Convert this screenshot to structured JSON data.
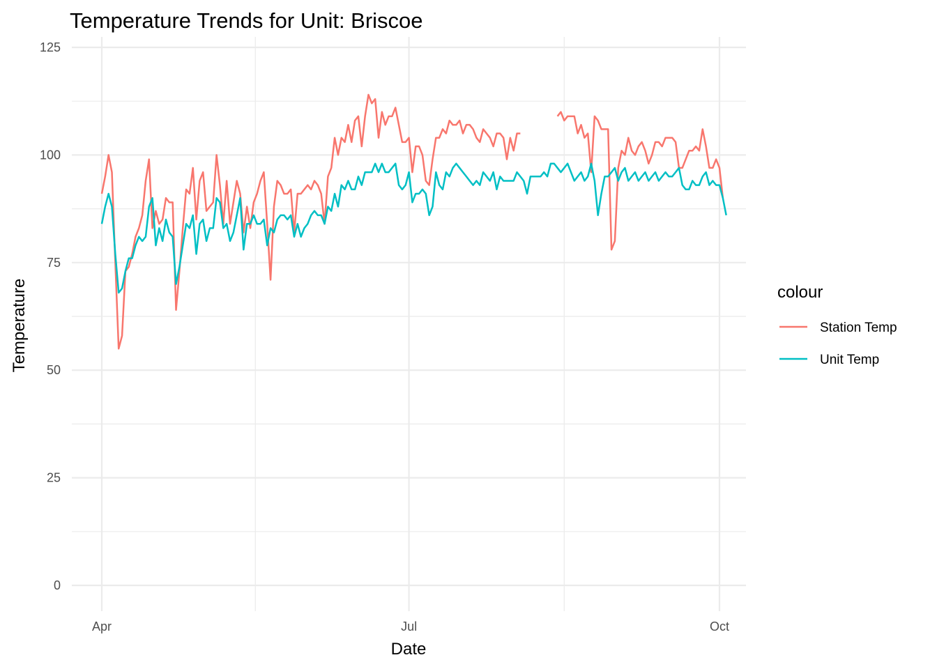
{
  "chart_data": {
    "type": "line",
    "title": "Temperature Trends for Unit: Briscoe",
    "xlabel": "Date",
    "ylabel": "Temperature",
    "ylim": [
      0,
      125
    ],
    "xlim": [
      "2024-04-01",
      "2024-10-01"
    ],
    "yticks": [
      0,
      25,
      50,
      75,
      100,
      125
    ],
    "xticks": [
      {
        "date": "2024-04-01",
        "label": "Apr"
      },
      {
        "date": "2024-07-01",
        "label": "Jul"
      },
      {
        "date": "2024-10-01",
        "label": "Oct"
      }
    ],
    "grid": true,
    "legend": {
      "title": "colour",
      "position": "right"
    },
    "series": [
      {
        "name": "Station Temp",
        "color": "#F8766D",
        "start_date": "2024-04-01",
        "values": [
          91,
          95,
          100,
          96,
          75,
          55,
          58,
          73,
          74,
          77,
          81,
          83,
          86,
          94,
          99,
          83,
          87,
          84,
          85,
          90,
          89,
          89,
          64,
          73,
          83,
          92,
          91,
          97,
          85,
          94,
          96,
          87,
          88,
          89,
          100,
          93,
          84,
          94,
          84,
          89,
          94,
          91,
          82,
          88,
          83,
          89,
          91,
          94,
          96,
          84,
          71,
          88,
          94,
          93,
          91,
          91,
          92,
          82,
          91,
          91,
          92,
          93,
          92,
          94,
          93,
          91,
          84,
          95,
          97,
          104,
          100,
          104,
          103,
          107,
          103,
          108,
          109,
          102,
          109,
          114,
          112,
          113,
          104,
          110,
          107,
          109,
          109,
          111,
          107,
          103,
          103,
          104,
          96,
          102,
          102,
          100,
          94,
          93,
          99,
          104,
          104,
          106,
          105,
          108,
          107,
          107,
          108,
          105,
          107,
          107,
          106,
          104,
          103,
          106,
          105,
          104,
          102,
          105,
          105,
          104,
          99,
          104,
          101,
          105,
          105,
          null,
          null,
          null,
          null,
          null,
          null,
          null,
          null,
          null,
          null,
          109,
          110,
          108,
          109,
          109,
          109,
          105,
          107,
          104,
          105,
          96,
          109,
          108,
          106,
          106,
          106,
          78,
          80,
          97,
          101,
          100,
          104,
          101,
          100,
          102,
          103,
          101,
          98,
          100,
          103,
          103,
          102,
          104,
          104,
          104,
          103,
          97,
          97,
          99,
          101,
          101,
          102,
          101,
          106,
          102,
          97,
          97,
          99,
          97,
          90
        ]
      },
      {
        "name": "Unit Temp",
        "color": "#00BFC4",
        "start_date": "2024-04-01",
        "values": [
          84,
          88,
          91,
          88,
          77,
          68,
          69,
          73,
          76,
          76,
          79,
          81,
          80,
          81,
          88,
          90,
          79,
          83,
          80,
          85,
          82,
          81,
          70,
          74,
          79,
          84,
          83,
          86,
          77,
          84,
          85,
          80,
          83,
          83,
          90,
          89,
          83,
          84,
          80,
          82,
          86,
          90,
          78,
          84,
          84,
          86,
          84,
          84,
          85,
          79,
          83,
          82,
          85,
          86,
          86,
          85,
          86,
          81,
          84,
          81,
          83,
          84,
          86,
          87,
          86,
          86,
          84,
          88,
          87,
          91,
          88,
          93,
          92,
          94,
          92,
          92,
          95,
          93,
          96,
          96,
          96,
          98,
          96,
          98,
          96,
          96,
          97,
          98,
          93,
          92,
          93,
          96,
          89,
          91,
          91,
          92,
          91,
          86,
          88,
          96,
          93,
          92,
          96,
          95,
          97,
          98,
          97,
          96,
          95,
          94,
          93,
          94,
          93,
          96,
          95,
          94,
          96,
          92,
          95,
          94,
          94,
          94,
          94,
          96,
          95,
          94,
          91,
          95,
          95,
          95,
          95,
          96,
          95,
          98,
          98,
          97,
          96,
          97,
          98,
          96,
          94,
          95,
          96,
          94,
          95,
          98,
          94,
          86,
          91,
          95,
          95,
          96,
          97,
          94,
          96,
          97,
          94,
          95,
          96,
          94,
          95,
          96,
          94,
          95,
          96,
          94,
          95,
          96,
          95,
          95,
          96,
          97,
          93,
          92,
          92,
          94,
          93,
          93,
          95,
          96,
          93,
          94,
          93,
          93,
          90,
          86
        ]
      }
    ]
  }
}
